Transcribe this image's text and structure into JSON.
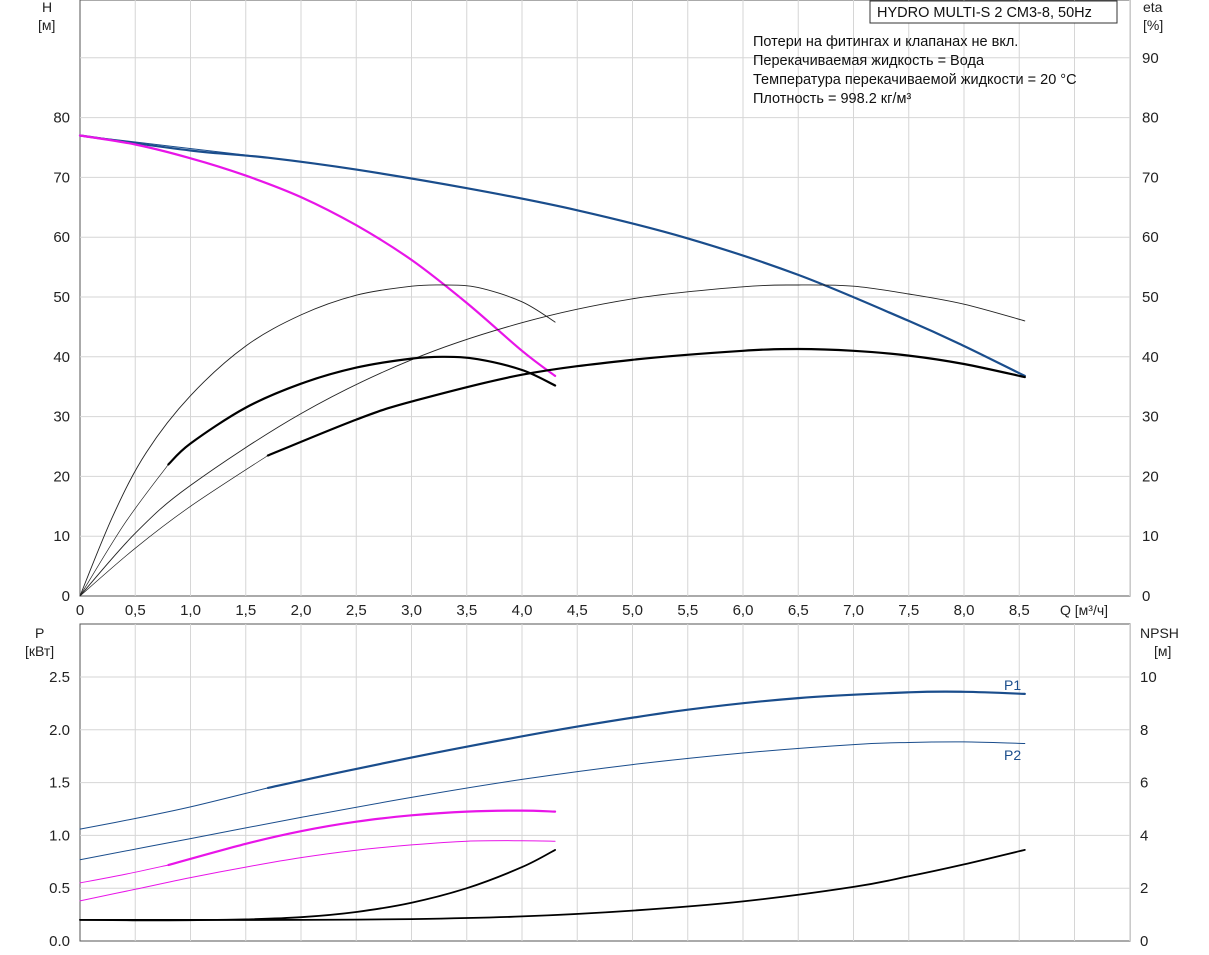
{
  "chart_data": [
    {
      "type": "line",
      "title": "HYDRO MULTI-S 2 CM3-8, 50Hz",
      "annotations": [
        "Потери на фитингах и клапанах не вкл.",
        "Перекачиваемая жидкость = Вода",
        "Температура перекачиваемой жидкости = 20 °C",
        "Плотность = 998.2 кг/м³"
      ],
      "xlabel": "Q [м³/ч]",
      "ylabel_left": [
        "H",
        "[м]"
      ],
      "ylabel_right": [
        "eta",
        "[%]"
      ],
      "xlim": [
        0,
        9.0
      ],
      "ylim_left": [
        0,
        100
      ],
      "ylim_right": [
        0,
        100
      ],
      "x_ticks": [
        "0",
        "0,5",
        "1,0",
        "1,5",
        "2,0",
        "2,5",
        "3,0",
        "3,5",
        "4,0",
        "4,5",
        "5,0",
        "5,5",
        "6,0",
        "6,5",
        "7,0",
        "7,5",
        "8,0",
        "8,5"
      ],
      "y_ticks_left": [
        "0",
        "10",
        "20",
        "30",
        "40",
        "50",
        "60",
        "70",
        "80"
      ],
      "y_ticks_right": [
        "0",
        "10",
        "20",
        "30",
        "40",
        "50",
        "60",
        "70",
        "80",
        "90"
      ],
      "grid": true,
      "series": [
        {
          "kind": "head_full",
          "color": "#1a4d8c",
          "width": 2.2,
          "x": [
            0,
            1,
            1.7,
            2.5,
            3.5,
            4.5,
            5.5,
            6.5,
            7.5,
            8.0,
            8.55
          ],
          "y": [
            77,
            74.5,
            73.3,
            71.3,
            68.2,
            64.5,
            59.8,
            53.7,
            46.0,
            41.8,
            36.8
          ]
        },
        {
          "kind": "head_thin",
          "color": "#1a4d8c",
          "width": 1.0,
          "x": [
            0,
            1.7
          ],
          "y": [
            77,
            73.3
          ]
        },
        {
          "kind": "head_reduced",
          "color": "#e815e8",
          "width": 2.2,
          "x": [
            0,
            0.5,
            1.0,
            1.5,
            2.0,
            2.5,
            3.0,
            3.5,
            4.0,
            4.3
          ],
          "y": [
            77,
            75.5,
            73.2,
            70.3,
            66.7,
            62.0,
            56.2,
            49.0,
            41.0,
            36.8
          ]
        },
        {
          "kind": "eta_full_thin",
          "color": "#222222",
          "width": 0.9,
          "x": [
            0,
            0.5,
            1.0,
            2.0,
            3.0,
            4.0,
            5.0,
            6.0,
            6.5,
            7.0,
            7.5,
            8.0,
            8.55
          ],
          "y": [
            0,
            10.5,
            18.5,
            30.5,
            39.5,
            45.7,
            49.7,
            51.7,
            52.0,
            51.8,
            50.5,
            48.8,
            46.0
          ]
        },
        {
          "kind": "eta_full_thin_low",
          "color": "#222222",
          "width": 0.7,
          "x": [
            0,
            0.5,
            1.0,
            1.7
          ],
          "y": [
            0,
            8.0,
            15.0,
            23.5
          ]
        },
        {
          "kind": "eta_full",
          "color": "#000000",
          "width": 2.2,
          "x": [
            1.7,
            2.5,
            3.0,
            4.0,
            5.0,
            6.0,
            6.5,
            7.0,
            7.5,
            8.0,
            8.55
          ],
          "y": [
            23.5,
            29.5,
            32.5,
            37.0,
            39.5,
            41.0,
            41.3,
            41.0,
            40.2,
            38.8,
            36.6
          ]
        },
        {
          "kind": "eta_reduced_thin",
          "color": "#222222",
          "width": 0.9,
          "x": [
            0,
            0.3,
            0.6,
            1.0,
            1.5,
            2.0,
            2.5,
            3.0,
            3.3,
            3.6,
            4.0,
            4.3
          ],
          "y": [
            0,
            13.5,
            24.0,
            33.5,
            41.8,
            47.0,
            50.3,
            51.8,
            52.0,
            51.6,
            49.2,
            45.8
          ]
        },
        {
          "kind": "eta_reduced_thin_low",
          "color": "#222222",
          "width": 0.7,
          "x": [
            0,
            0.4,
            0.8
          ],
          "y": [
            0,
            12.0,
            22.0
          ]
        },
        {
          "kind": "eta_reduced",
          "color": "#000000",
          "width": 2.2,
          "x": [
            0.8,
            1.0,
            1.5,
            2.0,
            2.5,
            3.0,
            3.3,
            3.6,
            4.0,
            4.3
          ],
          "y": [
            22.0,
            25.5,
            31.5,
            35.5,
            38.2,
            39.7,
            40.0,
            39.6,
            37.8,
            35.2
          ]
        }
      ]
    },
    {
      "type": "line",
      "xlabel": "",
      "ylabel_left": [
        "P",
        "[кВт]"
      ],
      "ylabel_right": [
        "NPSH",
        "[м]"
      ],
      "xlim": [
        0,
        9.0
      ],
      "ylim_left": [
        0,
        2.75
      ],
      "ylim_right": [
        0,
        11
      ],
      "y_ticks_left": [
        "0.0",
        "0.5",
        "1.0",
        "1.5",
        "2.0",
        "2.5"
      ],
      "y_ticks_right": [
        "0",
        "2",
        "4",
        "6",
        "8",
        "10"
      ],
      "grid": true,
      "series": [
        {
          "name": "P1",
          "color": "#1a4d8c",
          "width": 2.2,
          "x": [
            1.7,
            2.5,
            3.5,
            4.5,
            5.5,
            6.5,
            7.5,
            8.0,
            8.55
          ],
          "y": [
            1.45,
            1.63,
            1.84,
            2.03,
            2.19,
            2.3,
            2.355,
            2.36,
            2.34
          ]
        },
        {
          "kind": "P1_thin",
          "color": "#1a4d8c",
          "width": 1.0,
          "x": [
            0,
            0.5,
            1.0,
            1.7
          ],
          "y": [
            1.06,
            1.16,
            1.27,
            1.45
          ]
        },
        {
          "name": "P2",
          "color": "#1a4d8c",
          "width": 1.0,
          "x": [
            0,
            1.0,
            2.0,
            3.0,
            4.0,
            5.0,
            6.0,
            7.0,
            7.5,
            8.0,
            8.55
          ],
          "y": [
            0.77,
            0.97,
            1.17,
            1.36,
            1.53,
            1.67,
            1.78,
            1.86,
            1.88,
            1.885,
            1.87
          ]
        },
        {
          "kind": "P1_reduced",
          "color": "#e815e8",
          "width": 2.2,
          "x": [
            0.8,
            1.5,
            2.0,
            2.5,
            3.0,
            3.5,
            4.0,
            4.3
          ],
          "y": [
            0.72,
            0.92,
            1.04,
            1.13,
            1.19,
            1.225,
            1.235,
            1.225
          ]
        },
        {
          "kind": "P1_reduced_thin",
          "color": "#e815e8",
          "width": 1.0,
          "x": [
            0,
            0.4,
            0.8
          ],
          "y": [
            0.55,
            0.63,
            0.72
          ]
        },
        {
          "kind": "P2_reduced",
          "color": "#e815e8",
          "width": 1.0,
          "x": [
            0,
            0.5,
            1.0,
            1.5,
            2.0,
            2.5,
            3.0,
            3.5,
            4.0,
            4.3
          ],
          "y": [
            0.38,
            0.49,
            0.6,
            0.7,
            0.79,
            0.86,
            0.91,
            0.945,
            0.95,
            0.945
          ]
        },
        {
          "kind": "NPSH_full",
          "color": "#000000",
          "width": 1.8,
          "x": [
            0,
            1.0,
            2.0,
            3.0,
            4.0,
            5.0,
            6.0,
            7.0,
            7.5,
            8.0,
            8.55
          ],
          "y": [
            0.8,
            0.8,
            0.8,
            0.83,
            0.93,
            1.15,
            1.5,
            2.05,
            2.45,
            2.9,
            3.45
          ]
        },
        {
          "kind": "NPSH_reduced",
          "color": "#000000",
          "width": 1.8,
          "x": [
            0,
            0.8,
            1.5,
            2.0,
            2.5,
            3.0,
            3.5,
            4.0,
            4.3
          ],
          "y": [
            0.8,
            0.78,
            0.82,
            0.9,
            1.1,
            1.45,
            2.0,
            2.8,
            3.45
          ]
        }
      ]
    }
  ]
}
